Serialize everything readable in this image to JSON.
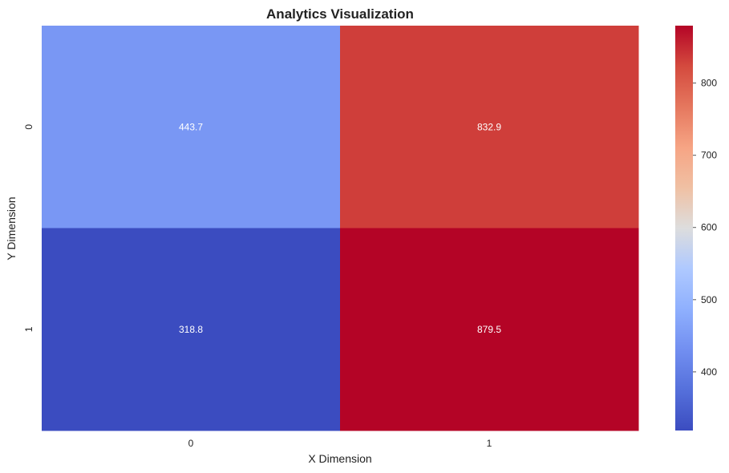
{
  "chart_data": {
    "type": "heatmap",
    "title": "Analytics Visualization",
    "xlabel": "X Dimension",
    "ylabel": "Y Dimension",
    "x_categories": [
      "0",
      "1"
    ],
    "y_categories": [
      "0",
      "1"
    ],
    "values": [
      [
        443.7,
        832.9
      ],
      [
        318.8,
        879.5
      ]
    ],
    "cell_labels": [
      [
        "443.7",
        "832.9"
      ],
      [
        "318.8",
        "879.5"
      ]
    ],
    "colormap": "coolwarm",
    "color_range": [
      318.8,
      879.5
    ],
    "colorbar_ticks": [
      "400",
      "500",
      "600",
      "700",
      "800"
    ],
    "grid": false
  }
}
